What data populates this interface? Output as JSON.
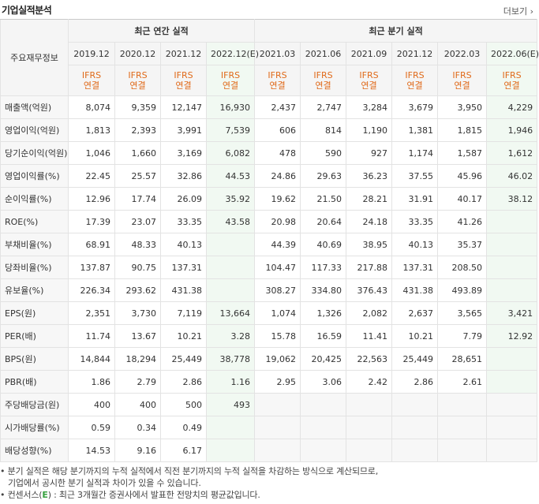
{
  "header": {
    "title": "기업실적분석",
    "more_label": "더보기"
  },
  "table": {
    "corner_label": "주요재무정보",
    "group_annual": "최근 연간 실적",
    "group_quarter": "최근 분기 실적",
    "periods": [
      {
        "label": "2019.12",
        "est": false
      },
      {
        "label": "2020.12",
        "est": false
      },
      {
        "label": "2021.12",
        "est": false
      },
      {
        "label": "2022.12(E)",
        "est": true
      },
      {
        "label": "2021.03",
        "est": false
      },
      {
        "label": "2021.06",
        "est": false
      },
      {
        "label": "2021.09",
        "est": false
      },
      {
        "label": "2021.12",
        "est": false
      },
      {
        "label": "2022.03",
        "est": false
      },
      {
        "label": "2022.06(E)",
        "est": true
      }
    ],
    "ifrs_line1": "IFRS",
    "ifrs_line2": "연결",
    "rows": [
      {
        "label": "매출액(억원)",
        "values": [
          "8,074",
          "9,359",
          "12,147",
          "16,930",
          "2,437",
          "2,747",
          "3,284",
          "3,679",
          "3,950",
          "4,229"
        ]
      },
      {
        "label": "영업이익(억원)",
        "values": [
          "1,813",
          "2,393",
          "3,991",
          "7,539",
          "606",
          "814",
          "1,190",
          "1,381",
          "1,815",
          "1,946"
        ]
      },
      {
        "label": "당기순이익(억원)",
        "values": [
          "1,046",
          "1,660",
          "3,169",
          "6,082",
          "478",
          "590",
          "927",
          "1,174",
          "1,587",
          "1,612"
        ]
      },
      {
        "label": "영업이익률(%)",
        "values": [
          "22.45",
          "25.57",
          "32.86",
          "44.53",
          "24.86",
          "29.63",
          "36.23",
          "37.55",
          "45.96",
          "46.02"
        ]
      },
      {
        "label": "순이익률(%)",
        "values": [
          "12.96",
          "17.74",
          "26.09",
          "35.92",
          "19.62",
          "21.50",
          "28.21",
          "31.91",
          "40.17",
          "38.12"
        ]
      },
      {
        "label": "ROE(%)",
        "values": [
          "17.39",
          "23.07",
          "33.35",
          "43.58",
          "20.98",
          "20.64",
          "24.18",
          "33.35",
          "41.26",
          ""
        ]
      },
      {
        "label": "부채비율(%)",
        "values": [
          "68.91",
          "48.33",
          "40.13",
          "",
          "44.39",
          "40.69",
          "38.95",
          "40.13",
          "35.37",
          ""
        ]
      },
      {
        "label": "당좌비율(%)",
        "values": [
          "137.87",
          "90.75",
          "137.31",
          "",
          "104.47",
          "117.33",
          "217.88",
          "137.31",
          "208.50",
          ""
        ]
      },
      {
        "label": "유보율(%)",
        "values": [
          "226.34",
          "293.62",
          "431.38",
          "",
          "308.27",
          "334.80",
          "376.43",
          "431.38",
          "493.89",
          ""
        ]
      },
      {
        "label": "EPS(원)",
        "values": [
          "2,351",
          "3,730",
          "7,119",
          "13,664",
          "1,074",
          "1,326",
          "2,082",
          "2,637",
          "3,565",
          "3,421"
        ]
      },
      {
        "label": "PER(배)",
        "values": [
          "11.74",
          "13.67",
          "10.21",
          "3.28",
          "15.78",
          "16.59",
          "11.41",
          "10.21",
          "7.79",
          "12.92"
        ]
      },
      {
        "label": "BPS(원)",
        "values": [
          "14,844",
          "18,294",
          "25,449",
          "38,778",
          "19,062",
          "20,425",
          "22,563",
          "25,449",
          "28,651",
          ""
        ]
      },
      {
        "label": "PBR(배)",
        "values": [
          "1.86",
          "2.79",
          "2.86",
          "1.16",
          "2.95",
          "3.06",
          "2.42",
          "2.86",
          "2.61",
          ""
        ]
      },
      {
        "label": "주당배당금(원)",
        "values": [
          "400",
          "400",
          "500",
          "493",
          "",
          "",
          "",
          "",
          "",
          ""
        ]
      },
      {
        "label": "시가배당률(%)",
        "values": [
          "0.59",
          "0.34",
          "0.49",
          "",
          "",
          "",
          "",
          "",
          "",
          ""
        ]
      },
      {
        "label": "배당성향(%)",
        "values": [
          "14.53",
          "9.16",
          "6.17",
          "",
          "",
          "",
          "",
          "",
          "",
          ""
        ]
      }
    ]
  },
  "notes": {
    "line1": "분기 실적은 해당 분기까지의 누적 실적에서 직전 분기까지의 누적 실적을 차감하는 방식으로 계산되므로,",
    "line2": "기업에서 공시한 분기 실적과 차이가 있을 수 있습니다.",
    "line3_prefix": "컨센서스(",
    "line3_e": "E",
    "line3_suffix": ") : 최근 3개월간 증권사에서 발표한 전망치의 평균값입니다."
  }
}
